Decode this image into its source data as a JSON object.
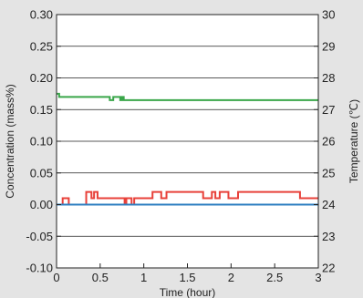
{
  "chart_data": {
    "type": "line",
    "xlabel": "Time (hour)",
    "ylabel": "Concentration (mass%)",
    "y2label": "Temperature (℃)",
    "xlim": [
      0,
      3
    ],
    "ylim": [
      -0.1,
      0.3
    ],
    "y2lim": [
      22,
      30
    ],
    "grid": "horizontal",
    "xticks": [
      "0",
      "0.5",
      "1",
      "1.5",
      "2",
      "2.5",
      "3"
    ],
    "yticks": [
      "-0.10",
      "-0.05",
      "0.00",
      "0.05",
      "0.10",
      "0.15",
      "0.20",
      "0.25",
      "0.30"
    ],
    "y2ticks": [
      "22",
      "23",
      "24",
      "25",
      "26",
      "27",
      "28",
      "29",
      "30"
    ],
    "series": [
      {
        "axis": "right",
        "color": "#3aa64a",
        "x": [
          0,
          0.02,
          0.03,
          0.6,
          0.61,
          0.64,
          0.65,
          0.72,
          0.73,
          0.75,
          0.77,
          0.8,
          0.81,
          3.0
        ],
        "y": [
          27.5,
          27.5,
          27.4,
          27.4,
          27.3,
          27.3,
          27.4,
          27.4,
          27.3,
          27.4,
          27.3,
          27.3,
          27.3,
          27.3
        ]
      },
      {
        "axis": "left",
        "color": "#e8413a",
        "x": [
          0,
          0.06,
          0.07,
          0.13,
          0.14,
          0.33,
          0.34,
          0.39,
          0.4,
          0.42,
          0.43,
          0.46,
          0.47,
          0.56,
          0.57,
          0.77,
          0.78,
          0.79,
          0.8,
          0.85,
          0.86,
          0.88,
          0.89,
          1.09,
          1.1,
          1.19,
          1.2,
          1.25,
          1.26,
          1.41,
          1.42,
          1.67,
          1.68,
          1.77,
          1.78,
          1.81,
          1.82,
          1.86,
          1.87,
          1.96,
          1.97,
          2.07,
          2.08,
          2.1,
          2.11,
          2.78,
          2.79,
          2.82,
          2.83,
          3.0
        ],
        "y": [
          0.0,
          0.0,
          0.01,
          0.01,
          0.0,
          0.0,
          0.02,
          0.02,
          0.01,
          0.01,
          0.02,
          0.02,
          0.01,
          0.01,
          0.01,
          0.01,
          0.0,
          0.0,
          0.01,
          0.01,
          0.0,
          0.0,
          0.01,
          0.01,
          0.02,
          0.02,
          0.01,
          0.01,
          0.02,
          0.02,
          0.02,
          0.02,
          0.01,
          0.01,
          0.02,
          0.02,
          0.01,
          0.01,
          0.02,
          0.02,
          0.01,
          0.01,
          0.02,
          0.02,
          0.02,
          0.02,
          0.01,
          0.01,
          0.01,
          0.01
        ]
      },
      {
        "axis": "left",
        "color": "#2f7fc1",
        "x": [
          0,
          3.0
        ],
        "y": [
          0.0,
          0.0
        ]
      }
    ]
  }
}
